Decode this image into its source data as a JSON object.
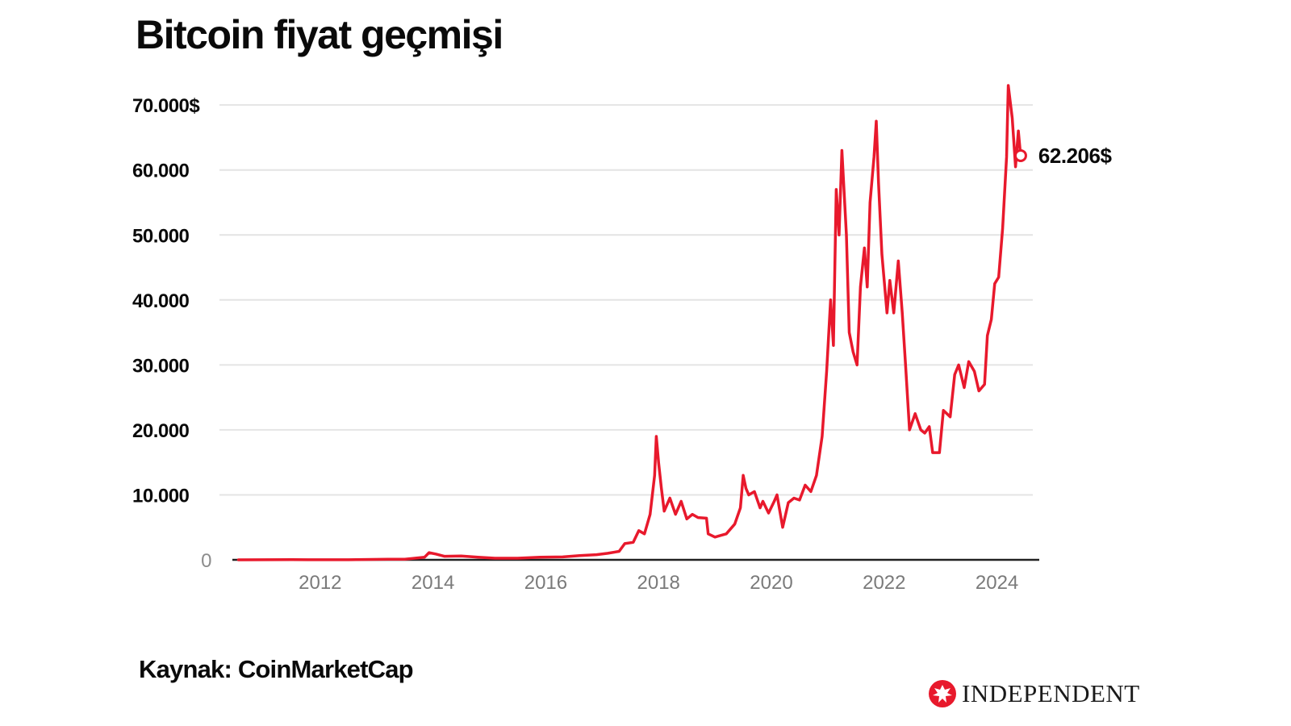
{
  "title": "Bitcoin fiyat geçmişi",
  "source": "Kaynak: CoinMarketCap",
  "brand": {
    "name": "INDEPENDENT",
    "logo_icon": "eagle-logo-icon"
  },
  "colors": {
    "line": "#e8192c",
    "grid": "#e4e4e4",
    "axis": "#222222",
    "text": "#0a0a0a",
    "muted": "#7a7a7a"
  },
  "chart_data": {
    "type": "line",
    "title": "Bitcoin fiyat geçmişi",
    "xlabel": "",
    "ylabel": "",
    "xlim": [
      2010.5,
      2024.75
    ],
    "ylim": [
      0,
      73000
    ],
    "grid": true,
    "y_ticks": [
      {
        "value": 0,
        "label": "0"
      },
      {
        "value": 10000,
        "label": "10.000"
      },
      {
        "value": 20000,
        "label": "20.000"
      },
      {
        "value": 30000,
        "label": "30.000"
      },
      {
        "value": 40000,
        "label": "40.000"
      },
      {
        "value": 50000,
        "label": "50.000"
      },
      {
        "value": 60000,
        "label": "60.000"
      },
      {
        "value": 70000,
        "label": "70.000$"
      }
    ],
    "x_ticks": [
      {
        "value": 2012,
        "label": "2012"
      },
      {
        "value": 2014,
        "label": "2014"
      },
      {
        "value": 2016,
        "label": "2016"
      },
      {
        "value": 2018,
        "label": "2018"
      },
      {
        "value": 2020,
        "label": "2020"
      },
      {
        "value": 2022,
        "label": "2022"
      },
      {
        "value": 2024,
        "label": "2024"
      }
    ],
    "end_label": "62.206$",
    "series": [
      {
        "values": [
          [
            2010.55,
            0
          ],
          [
            2011.5,
            20
          ],
          [
            2012.5,
            10
          ],
          [
            2013.2,
            100
          ],
          [
            2013.5,
            100
          ],
          [
            2013.85,
            400
          ],
          [
            2013.93,
            1100
          ],
          [
            2014.05,
            900
          ],
          [
            2014.2,
            550
          ],
          [
            2014.5,
            600
          ],
          [
            2014.8,
            400
          ],
          [
            2015.1,
            250
          ],
          [
            2015.5,
            250
          ],
          [
            2015.9,
            400
          ],
          [
            2016.3,
            450
          ],
          [
            2016.6,
            650
          ],
          [
            2016.9,
            800
          ],
          [
            2017.1,
            1000
          ],
          [
            2017.3,
            1300
          ],
          [
            2017.4,
            2500
          ],
          [
            2017.55,
            2700
          ],
          [
            2017.65,
            4500
          ],
          [
            2017.75,
            4000
          ],
          [
            2017.85,
            7000
          ],
          [
            2017.93,
            13000
          ],
          [
            2017.96,
            19000
          ],
          [
            2018.0,
            15000
          ],
          [
            2018.05,
            11000
          ],
          [
            2018.1,
            7500
          ],
          [
            2018.2,
            9500
          ],
          [
            2018.3,
            7000
          ],
          [
            2018.4,
            9000
          ],
          [
            2018.5,
            6300
          ],
          [
            2018.6,
            7000
          ],
          [
            2018.7,
            6500
          ],
          [
            2018.85,
            6400
          ],
          [
            2018.88,
            4000
          ],
          [
            2019.0,
            3500
          ],
          [
            2019.2,
            4000
          ],
          [
            2019.35,
            5500
          ],
          [
            2019.45,
            8000
          ],
          [
            2019.5,
            13000
          ],
          [
            2019.55,
            11000
          ],
          [
            2019.6,
            10000
          ],
          [
            2019.7,
            10500
          ],
          [
            2019.8,
            8000
          ],
          [
            2019.85,
            9000
          ],
          [
            2019.95,
            7200
          ],
          [
            2020.05,
            9000
          ],
          [
            2020.1,
            10000
          ],
          [
            2020.2,
            5000
          ],
          [
            2020.3,
            8800
          ],
          [
            2020.4,
            9500
          ],
          [
            2020.5,
            9200
          ],
          [
            2020.6,
            11500
          ],
          [
            2020.7,
            10500
          ],
          [
            2020.8,
            13000
          ],
          [
            2020.9,
            19000
          ],
          [
            2020.98,
            29000
          ],
          [
            2021.05,
            40000
          ],
          [
            2021.1,
            33000
          ],
          [
            2021.15,
            57000
          ],
          [
            2021.2,
            50000
          ],
          [
            2021.25,
            63000
          ],
          [
            2021.33,
            50000
          ],
          [
            2021.38,
            35000
          ],
          [
            2021.45,
            32000
          ],
          [
            2021.52,
            30000
          ],
          [
            2021.58,
            42000
          ],
          [
            2021.65,
            48000
          ],
          [
            2021.7,
            42000
          ],
          [
            2021.75,
            55000
          ],
          [
            2021.82,
            62000
          ],
          [
            2021.86,
            67500
          ],
          [
            2021.9,
            58000
          ],
          [
            2021.96,
            47000
          ],
          [
            2022.05,
            38000
          ],
          [
            2022.1,
            43000
          ],
          [
            2022.17,
            38000
          ],
          [
            2022.25,
            46000
          ],
          [
            2022.32,
            38000
          ],
          [
            2022.38,
            30000
          ],
          [
            2022.45,
            20000
          ],
          [
            2022.55,
            22500
          ],
          [
            2022.65,
            20000
          ],
          [
            2022.72,
            19500
          ],
          [
            2022.8,
            20500
          ],
          [
            2022.86,
            16500
          ],
          [
            2022.98,
            16500
          ],
          [
            2023.05,
            23000
          ],
          [
            2023.17,
            22000
          ],
          [
            2023.25,
            28500
          ],
          [
            2023.32,
            30000
          ],
          [
            2023.42,
            26500
          ],
          [
            2023.5,
            30500
          ],
          [
            2023.6,
            29000
          ],
          [
            2023.68,
            26000
          ],
          [
            2023.78,
            27000
          ],
          [
            2023.83,
            34500
          ],
          [
            2023.9,
            37000
          ],
          [
            2023.96,
            42500
          ],
          [
            2024.03,
            43500
          ],
          [
            2024.1,
            51000
          ],
          [
            2024.17,
            62000
          ],
          [
            2024.2,
            73000
          ],
          [
            2024.27,
            68000
          ],
          [
            2024.33,
            60500
          ],
          [
            2024.38,
            66000
          ],
          [
            2024.42,
            62206
          ]
        ]
      }
    ]
  }
}
